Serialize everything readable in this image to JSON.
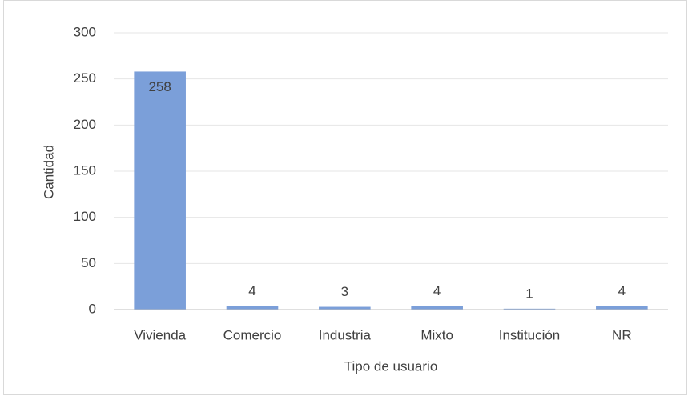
{
  "chart_data": {
    "type": "bar",
    "categories": [
      "Vivienda",
      "Comercio",
      "Industria",
      "Mixto",
      "Institución",
      "NR"
    ],
    "values": [
      258,
      4,
      3,
      4,
      1,
      4
    ],
    "color": "#7b9fd9",
    "xlabel": "Tipo de usuario",
    "ylabel": "Cantidad",
    "ylim": [
      0,
      300
    ],
    "yticks": [
      0,
      50,
      100,
      150,
      200,
      250,
      300
    ],
    "grid": true
  }
}
